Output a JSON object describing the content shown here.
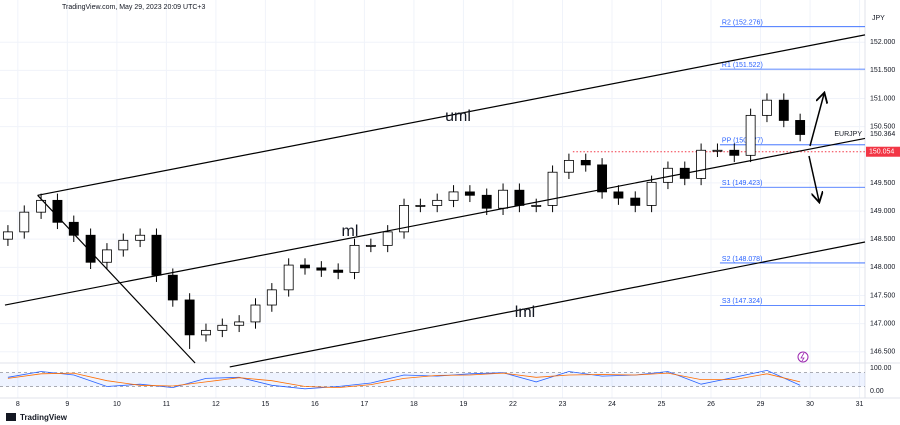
{
  "chart_data": {
    "type": "candlestick",
    "source": "TradingView.com, May 29, 2023 20:09 UTC+3",
    "axis_unit": "JPY",
    "brand": "TradingView",
    "x": [
      -0.2,
      0.13,
      0.47,
      0.8,
      1.13,
      1.47,
      1.8,
      2.13,
      2.47,
      2.8,
      3.13,
      3.47,
      3.8,
      4.13,
      4.47,
      4.8,
      5.13,
      5.47,
      5.8,
      6.13,
      6.47,
      6.8,
      7.13,
      7.47,
      7.8,
      8.13,
      8.47,
      8.8,
      9.13,
      9.47,
      9.8,
      10.13,
      10.47,
      10.8,
      11.13,
      11.47,
      11.8,
      12.13,
      12.47,
      12.8,
      13.13,
      13.47,
      13.8,
      14.13,
      14.47,
      14.8,
      15.13,
      15.47,
      15.8
    ],
    "open": [
      148.5,
      148.63,
      148.98,
      149.19,
      148.8,
      148.57,
      148.09,
      148.31,
      148.48,
      148.57,
      147.86,
      147.42,
      146.8,
      146.88,
      146.97,
      147.03,
      147.33,
      147.6,
      148.04,
      147.99,
      147.95,
      147.91,
      148.39,
      148.39,
      148.63,
      149.1,
      149.1,
      149.19,
      149.34,
      149.28,
      149.05,
      149.37,
      149.1,
      149.1,
      149.69,
      149.9,
      149.82,
      149.34,
      149.23,
      149.1,
      149.51,
      149.76,
      149.58,
      150.08,
      150.08,
      149.99,
      150.7,
      150.97,
      150.61
    ],
    "high": [
      148.75,
      149.1,
      149.31,
      149.31,
      148.92,
      148.69,
      148.43,
      148.6,
      148.69,
      148.69,
      147.98,
      147.54,
      147.0,
      147.09,
      147.15,
      147.45,
      147.72,
      148.16,
      148.16,
      148.11,
      148.07,
      148.51,
      148.51,
      148.75,
      149.22,
      149.22,
      149.31,
      149.46,
      149.46,
      149.4,
      149.49,
      149.49,
      149.22,
      149.81,
      150.02,
      150.02,
      149.94,
      149.46,
      149.35,
      149.63,
      149.88,
      149.88,
      150.2,
      150.2,
      150.2,
      150.82,
      151.09,
      151.09,
      150.73
    ],
    "low": [
      148.38,
      148.51,
      148.86,
      148.68,
      148.45,
      147.97,
      147.97,
      148.19,
      148.36,
      147.74,
      147.3,
      146.55,
      146.68,
      146.76,
      146.85,
      146.91,
      147.21,
      147.48,
      147.87,
      147.83,
      147.79,
      147.79,
      148.27,
      148.27,
      148.51,
      148.98,
      148.98,
      149.07,
      149.16,
      148.93,
      148.93,
      148.98,
      148.98,
      148.98,
      149.57,
      149.7,
      149.22,
      149.11,
      148.98,
      148.98,
      149.39,
      149.46,
      149.46,
      149.96,
      149.87,
      149.87,
      150.58,
      150.49,
      150.24
    ],
    "close": [
      148.63,
      148.98,
      149.19,
      148.8,
      148.57,
      148.09,
      148.31,
      148.48,
      148.57,
      147.86,
      147.42,
      146.8,
      146.88,
      146.97,
      147.03,
      147.33,
      147.6,
      148.04,
      147.99,
      147.95,
      147.91,
      148.39,
      148.39,
      148.63,
      149.1,
      149.1,
      149.19,
      149.34,
      149.28,
      149.05,
      149.37,
      149.1,
      149.1,
      149.69,
      149.9,
      149.82,
      149.34,
      149.23,
      149.1,
      149.51,
      149.76,
      149.58,
      150.08,
      150.08,
      149.99,
      150.7,
      150.97,
      150.61,
      150.36
    ],
    "up_color": "#ffffff",
    "down_color": "#000000",
    "wick_color": "#000000",
    "xlim": [
      -0.36,
      17.11
    ],
    "xticks": [
      {
        "value": 0,
        "label": "8"
      },
      {
        "value": 1,
        "label": "9"
      },
      {
        "value": 2,
        "label": "10"
      },
      {
        "value": 3,
        "label": "11"
      },
      {
        "value": 4,
        "label": "12"
      },
      {
        "value": 5,
        "label": "15"
      },
      {
        "value": 6,
        "label": "16"
      },
      {
        "value": 7,
        "label": "17"
      },
      {
        "value": 8,
        "label": "18"
      },
      {
        "value": 9,
        "label": "19"
      },
      {
        "value": 10,
        "label": "22"
      },
      {
        "value": 11,
        "label": "23"
      },
      {
        "value": 12,
        "label": "24"
      },
      {
        "value": 13,
        "label": "25"
      },
      {
        "value": 14,
        "label": "26"
      },
      {
        "value": 15,
        "label": "29"
      },
      {
        "value": 16,
        "label": "30"
      },
      {
        "value": 17,
        "label": "31"
      }
    ],
    "ylim": [
      146.3,
      152.75
    ],
    "yticks": [
      {
        "value": 146.5,
        "label": "146.500"
      },
      {
        "value": 147,
        "label": "147.000"
      },
      {
        "value": 147.5,
        "label": "147.500"
      },
      {
        "value": 148,
        "label": "148.000"
      },
      {
        "value": 148.5,
        "label": "148.500"
      },
      {
        "value": 149,
        "label": "149.000"
      },
      {
        "value": 149.5,
        "label": "149.500"
      },
      {
        "value": 150.5,
        "label": "150.500"
      },
      {
        "value": 151,
        "label": "151.000"
      },
      {
        "value": 151.5,
        "label": "151.500"
      },
      {
        "value": 152,
        "label": "152.000"
      }
    ],
    "grid": true,
    "levels": [
      {
        "label": "R2 (152.276)",
        "value": 152.276
      },
      {
        "label": "R1 (151.522)",
        "value": 151.522
      },
      {
        "label": "PP (150.177)",
        "value": 150.177
      },
      {
        "label": "S1 (149.423)",
        "value": 149.423
      },
      {
        "label": "S2 (148.078)",
        "value": 148.078
      },
      {
        "label": "S3 (147.324)",
        "value": 147.324
      }
    ],
    "levels_start": 14.18,
    "level_color": "#2962ff",
    "lines": [
      {
        "name": "uml",
        "points": [
          [
            0.4,
            149.28
          ],
          [
            17.11,
            152.13
          ]
        ]
      },
      {
        "name": "ml",
        "points": [
          [
            -0.26,
            147.33
          ],
          [
            17.11,
            150.29
          ]
        ]
      },
      {
        "name": "lml",
        "points": [
          [
            4.28,
            146.23
          ],
          [
            17.11,
            148.45
          ]
        ]
      },
      {
        "points": [
          [
            0.4,
            149.28
          ],
          [
            3.58,
            146.3
          ]
        ]
      }
    ],
    "resistance": {
      "value": 150.054,
      "start": 11.21,
      "color": "#f23645"
    },
    "symbol": {
      "label": "EURJPY",
      "value": 150.364
    },
    "oscillator": {
      "x": [
        -0.2,
        0.47,
        1.13,
        1.8,
        2.47,
        3.13,
        3.8,
        4.47,
        5.13,
        5.8,
        6.47,
        7.13,
        7.8,
        8.47,
        9.13,
        9.8,
        10.47,
        11.13,
        11.8,
        12.47,
        13.13,
        13.8,
        14.47,
        15.13,
        15.8
      ],
      "ylim": [
        -30,
        122
      ],
      "yticks": [
        {
          "value": 100,
          "label": "100.00"
        },
        {
          "value": 0,
          "label": "0.00"
        }
      ],
      "band": [
        20,
        80
      ],
      "series": [
        {
          "color": "#2962ff",
          "values": [
            60,
            85,
            70,
            20,
            30,
            15,
            55,
            60,
            25,
            10,
            20,
            35,
            70,
            65,
            75,
            80,
            40,
            85,
            65,
            70,
            85,
            30,
            60,
            90,
            25
          ]
        },
        {
          "color": "#ff6d00",
          "values": [
            55,
            75,
            78,
            45,
            25,
            22,
            40,
            58,
            45,
            20,
            15,
            28,
            55,
            68,
            70,
            78,
            60,
            70,
            72,
            70,
            78,
            50,
            50,
            75,
            40
          ]
        }
      ]
    }
  }
}
